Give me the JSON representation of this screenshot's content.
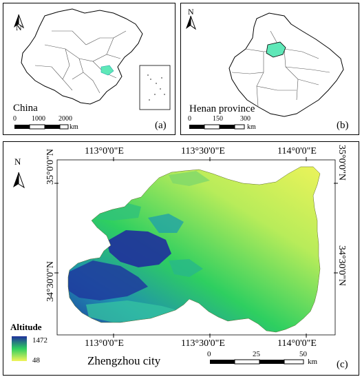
{
  "panel_a": {
    "title": "China",
    "panel_label": "(a)",
    "north_label": "N",
    "scale_ticks": [
      "0",
      "1000",
      "2000"
    ],
    "scale_unit": "km"
  },
  "panel_b": {
    "title": "Henan province",
    "panel_label": "(b)",
    "north_label": "N",
    "scale_ticks": [
      "0",
      "150",
      "300"
    ],
    "scale_unit": "km",
    "highlight_color": "#5fe8b8"
  },
  "panel_c": {
    "title": "Zhengzhou city",
    "panel_label": "(c)",
    "north_label": "N",
    "top_lon_labels": [
      "113°0'0\"E",
      "113°30'0\"E",
      "114°0'0\"E"
    ],
    "bottom_lon_labels": [
      "113°0'0\"E",
      "113°30'0\"E",
      "114°0'0\"E"
    ],
    "left_lat_labels": [
      "35°0'0\"N",
      "34°30'0\"N"
    ],
    "right_lat_labels": [
      "35°0'0\"N",
      "34°30'0\"N"
    ],
    "legend": {
      "title": "Altitude",
      "max": "1472",
      "min": "48",
      "color_high": "#1f2f9c",
      "color_mid": "#2ecf60",
      "color_low": "#f2f45a"
    },
    "scale_ticks": [
      "0",
      "25",
      "50"
    ],
    "scale_unit": "km"
  }
}
